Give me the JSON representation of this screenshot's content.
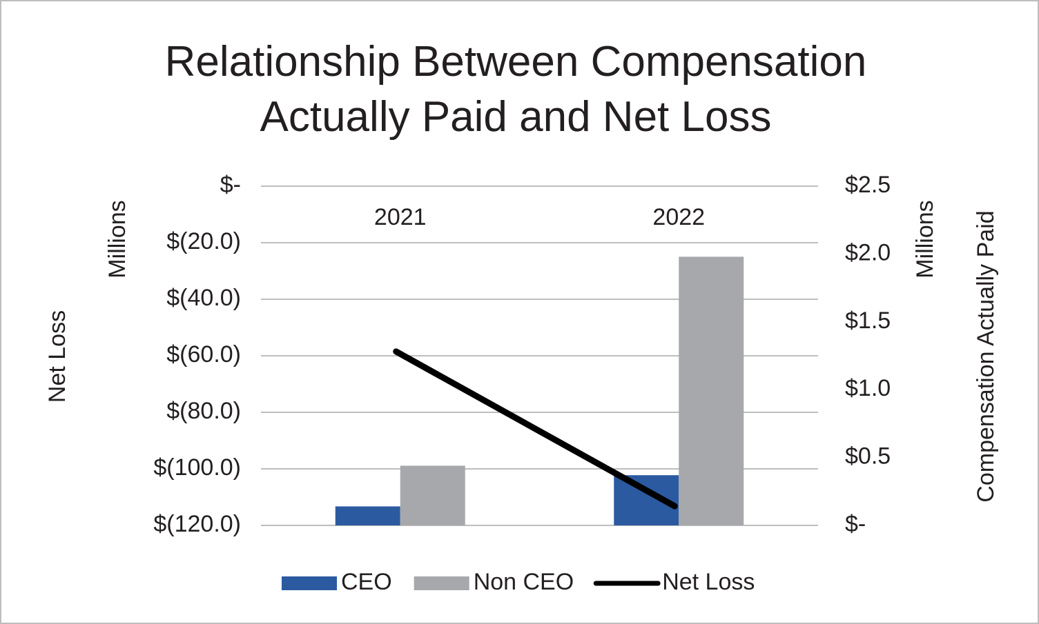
{
  "chart_data": {
    "type": "bar",
    "title": "Relationship Between Compensation Actually Paid and Net Loss",
    "ylabel": "Net Loss",
    "ylabel_unit": "Millions",
    "y2label": "Compensation Actually Paid",
    "y2label_unit": "Millions",
    "categories": [
      "2021",
      "2022"
    ],
    "series": [
      {
        "name": "CEO",
        "type": "bar",
        "axis": "y2",
        "color": "#2b5aa0",
        "values": [
          0.14,
          0.37
        ]
      },
      {
        "name": "Non CEO",
        "type": "bar",
        "axis": "y2",
        "color": "#a7a8ab",
        "values": [
          0.44,
          1.98
        ]
      },
      {
        "name": "Net Loss",
        "type": "line",
        "axis": "y",
        "color": "#000000",
        "values": [
          -58.5,
          -113.2
        ]
      }
    ],
    "ylim": [
      -120,
      0
    ],
    "yticks": [
      {
        "value": 0,
        "label": "$-"
      },
      {
        "value": -20,
        "label": "$(20.0)"
      },
      {
        "value": -40,
        "label": "$(40.0)"
      },
      {
        "value": -60,
        "label": "$(60.0)"
      },
      {
        "value": -80,
        "label": "$(80.0)"
      },
      {
        "value": -100,
        "label": "$(100.0)"
      },
      {
        "value": -120,
        "label": "$(120.0)"
      }
    ],
    "y2lim": [
      0,
      2.5
    ],
    "y2ticks": [
      {
        "value": 2.5,
        "label": "$2.5"
      },
      {
        "value": 2,
        "label": "$2.0"
      },
      {
        "value": 1.5,
        "label": "$1.5"
      },
      {
        "value": 1,
        "label": "$1.0"
      },
      {
        "value": 0.5,
        "label": "$0.5"
      },
      {
        "value": 0,
        "label": "$-"
      }
    ],
    "grid": true,
    "legend": "bottom"
  }
}
